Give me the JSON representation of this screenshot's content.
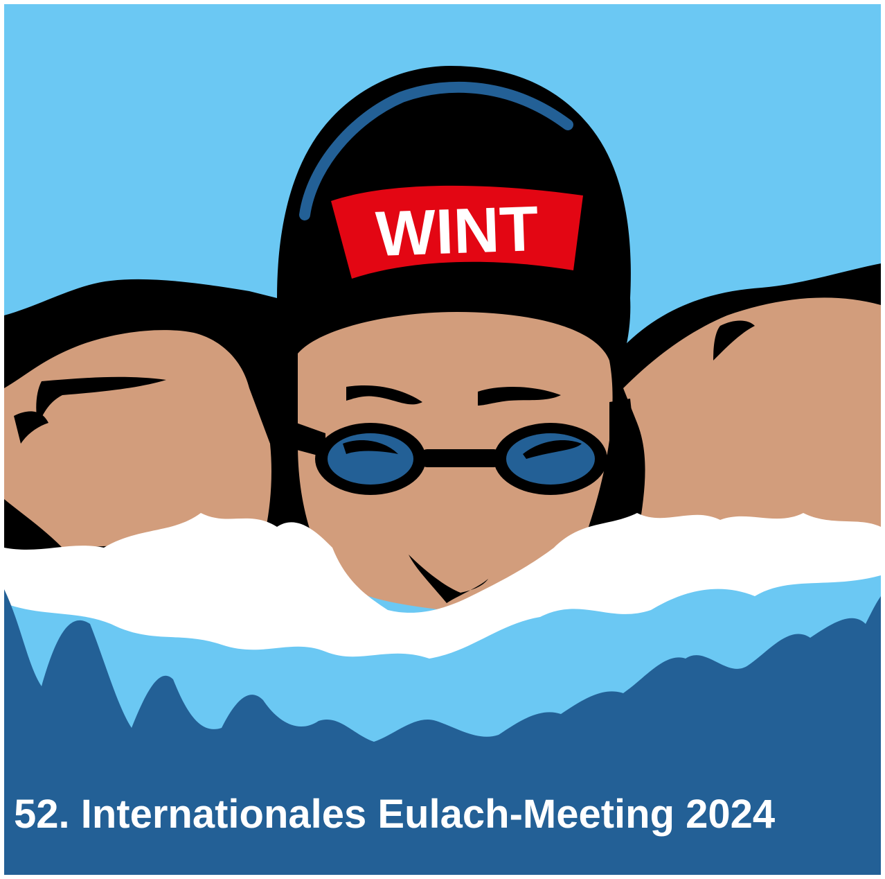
{
  "logo": {
    "cap_text": "WINT",
    "colors": {
      "sky": "#6BC8F3",
      "deep_water": "#236096",
      "light_water": "#6BC8F3",
      "foam": "#FFFFFF",
      "skin": "#D29D7C",
      "cap": "#000000",
      "cap_stripe": "#236096",
      "cap_badge": "#E30613",
      "goggle_lens": "#236096"
    }
  },
  "caption": {
    "text": "52. Internationales Eulach-Meeting 2024",
    "color": "#FFFFFF"
  }
}
